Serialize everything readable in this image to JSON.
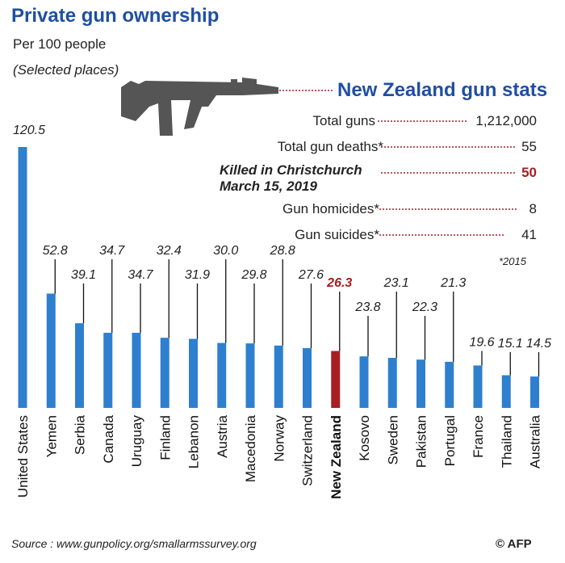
{
  "header": {
    "title": "Private gun ownership",
    "subtitle": "Per 100 people",
    "note": "(Selected places)"
  },
  "nz_stats": {
    "title": "New Zealand gun stats",
    "rows": [
      {
        "label": "Total guns",
        "value": "1,212,000"
      },
      {
        "label": "Total gun deaths*",
        "value": "55"
      },
      {
        "label": "Killed in Christchurch\nMarch 15, 2019",
        "label_line1": "Killed in Christchurch",
        "label_line2": "March 15, 2019",
        "value": "50"
      },
      {
        "label": "Gun homicides*",
        "value": "8"
      },
      {
        "label": "Gun suicides*",
        "value": "41"
      }
    ],
    "footnote": "*2015"
  },
  "footer": {
    "source": "Source :  www.gunpolicy.org/smallarmssurvey.org",
    "credit": "© AFP"
  },
  "colors": {
    "title": "#1f4fa3",
    "bar": "#2f7fcf",
    "highlight": "#a61e22",
    "leader": "#a61e22",
    "gun": "#555555"
  },
  "icons": [
    "rifle-icon"
  ],
  "chart_data": {
    "type": "bar",
    "title": "Private gun ownership",
    "subtitle": "Per 100 people",
    "categories": [
      "United States",
      "Yemen",
      "Serbia",
      "Canada",
      "Uruguay",
      "Finland",
      "Lebanon",
      "Austria",
      "Macedonia",
      "Norway",
      "Switzerland",
      "New Zealand",
      "Kosovo",
      "Sweden",
      "Pakistan",
      "Portugal",
      "France",
      "Thailand",
      "Australia"
    ],
    "values": [
      120.5,
      52.8,
      39.1,
      34.7,
      34.7,
      32.4,
      31.9,
      30.0,
      29.8,
      28.8,
      27.6,
      26.3,
      23.8,
      23.1,
      22.3,
      21.3,
      19.6,
      15.1,
      14.5
    ],
    "value_labels": [
      "120.5",
      "52.8",
      "39.1",
      "34.7",
      "34.7",
      "32.4",
      "31.9",
      "30.0",
      "29.8",
      "28.8",
      "27.6",
      "26.3",
      "23.8",
      "23.1",
      "22.3",
      "21.3",
      "19.6",
      "15.1",
      "14.5"
    ],
    "highlight": "New Zealand",
    "grid": false,
    "legend": "none"
  }
}
